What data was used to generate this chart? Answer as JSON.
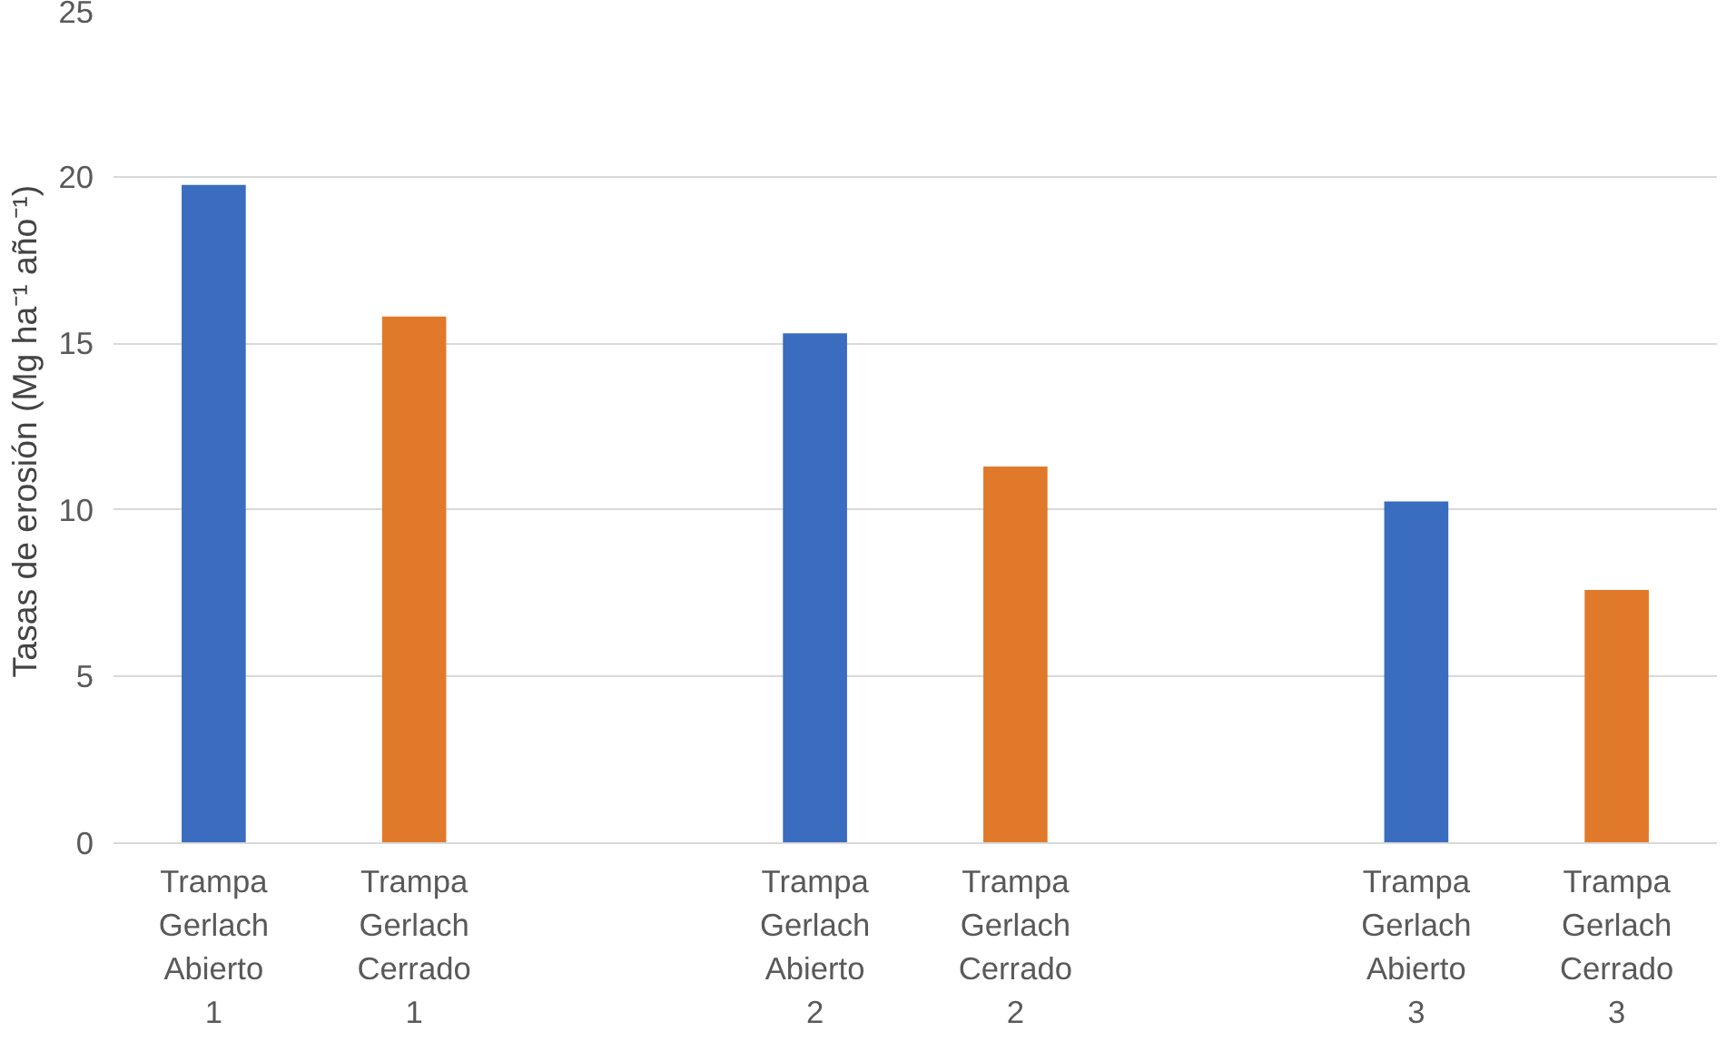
{
  "chart_data": {
    "type": "bar",
    "ylabel": "Tasas de erosión (Mg  ha⁻¹ año⁻¹)",
    "categories": [
      "Trampa Gerlach Abierto 1",
      "Trampa Gerlach Cerrado 1",
      null,
      "Trampa Gerlach Abierto 2",
      "Trampa Gerlach Cerrado 2",
      null,
      "Trampa Gerlach Abierto 3",
      "Trampa Gerlach Cerrado 3"
    ],
    "values": [
      19.75,
      15.8,
      null,
      15.3,
      11.3,
      null,
      10.25,
      7.6
    ],
    "colors": [
      "#3a6cc0",
      "#e07a2a",
      "#3a6cc0",
      "#3a6cc0",
      "#e07a2a",
      "#e07a2a",
      "#3a6cc0",
      "#e07a2a"
    ],
    "ylim": [
      0,
      25
    ],
    "yticks": [
      0,
      5,
      10,
      15,
      20,
      25
    ],
    "grid": "y"
  }
}
